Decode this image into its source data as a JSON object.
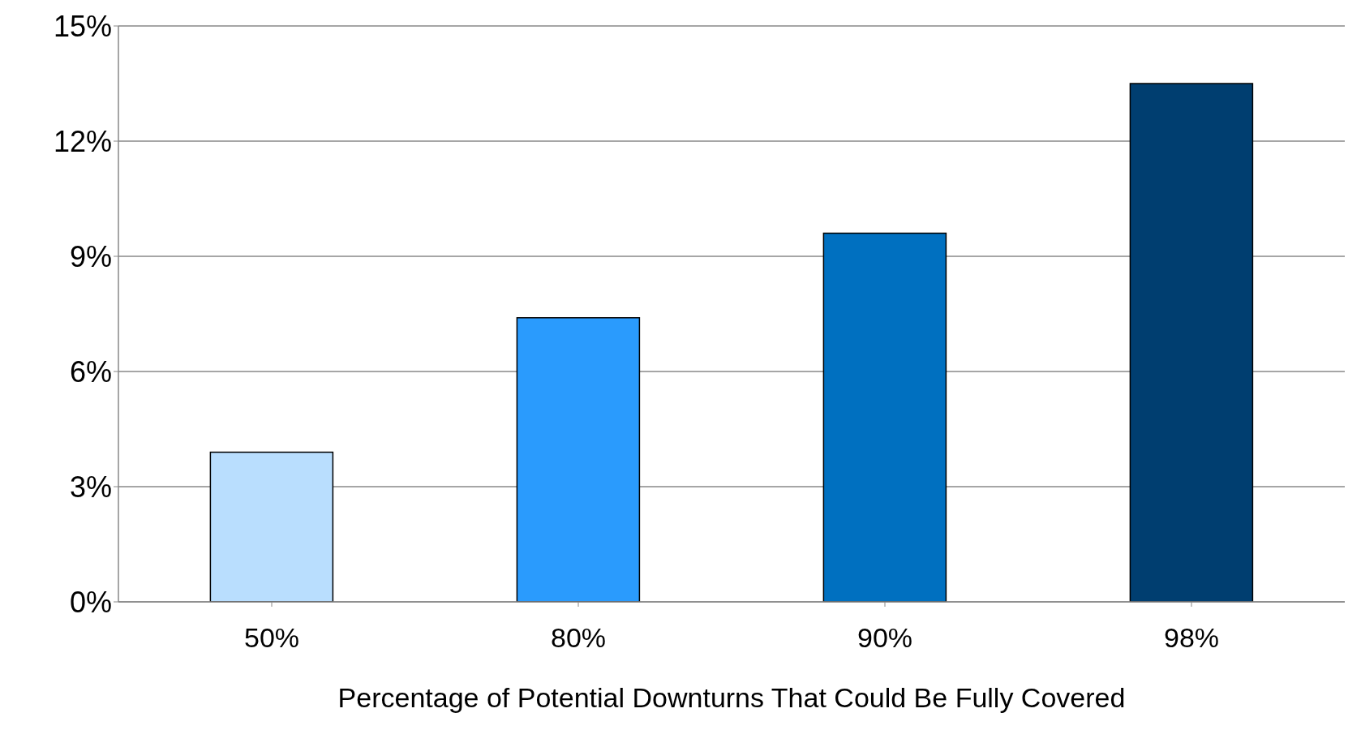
{
  "chart_data": {
    "type": "bar",
    "xlabel": "Percentage of Potential Downturns That Could Be Fully Covered",
    "categories": [
      "50%",
      "80%",
      "90%",
      "98%"
    ],
    "values": [
      3.9,
      7.4,
      9.6,
      13.5
    ],
    "colors": [
      "#b9defe",
      "#2a9bfd",
      "#0070c0",
      "#003e70"
    ],
    "ylim": [
      0,
      15
    ],
    "yticks": [
      {
        "value": 0,
        "label": "0%"
      },
      {
        "value": 3,
        "label": "3%"
      },
      {
        "value": 6,
        "label": "6%"
      },
      {
        "value": 9,
        "label": "9%"
      },
      {
        "value": 12,
        "label": "12%"
      },
      {
        "value": 15,
        "label": "15%"
      }
    ],
    "grid": "y",
    "legend": false
  }
}
